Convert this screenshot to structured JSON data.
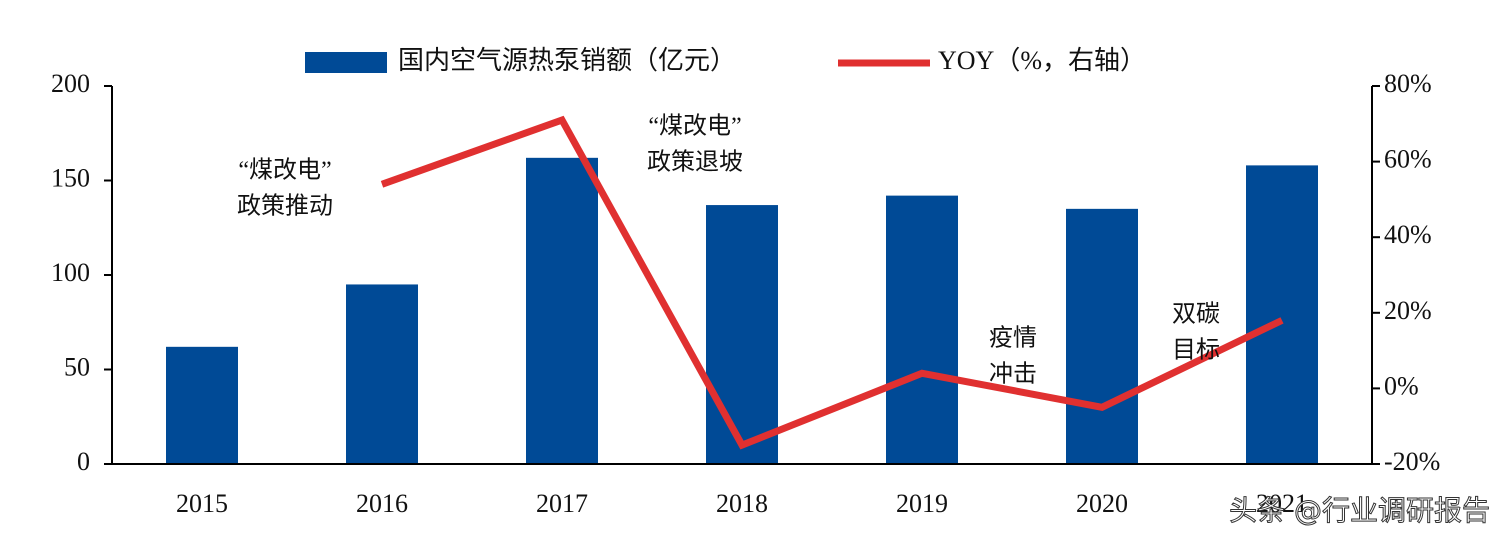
{
  "chart_data": {
    "type": "bar-line",
    "categories": [
      "2015",
      "2016",
      "2017",
      "2018",
      "2019",
      "2020",
      "2021"
    ],
    "series": [
      {
        "name": "国内空气源热泵销额（亿元）",
        "type": "bar",
        "color": "#004a96",
        "values": [
          62,
          95,
          162,
          137,
          142,
          135,
          158
        ]
      },
      {
        "name": "YOY（%，右轴）",
        "type": "line",
        "axis": "y2",
        "color": "#e03030",
        "values": [
          null,
          54,
          71,
          -15,
          4,
          -5,
          18
        ]
      }
    ],
    "ylim": [
      0,
      200
    ],
    "yticks": [
      0,
      50,
      100,
      150,
      200
    ],
    "y2lim": [
      -20,
      80
    ],
    "y2ticks": [
      {
        "value": -20,
        "label": "-20%"
      },
      {
        "value": 0,
        "label": "0%"
      },
      {
        "value": 20,
        "label": "20%"
      },
      {
        "value": 40,
        "label": "40%"
      },
      {
        "value": 60,
        "label": "60%"
      },
      {
        "value": 80,
        "label": "80%"
      }
    ],
    "annotations": [
      [
        "“煤改电”",
        "政策推动"
      ],
      [
        "“煤改电”",
        "政策退坡"
      ],
      [
        "疫情",
        "冲击"
      ],
      [
        "双碳",
        "目标"
      ]
    ],
    "watermark": "头条 @行业调研报告"
  }
}
